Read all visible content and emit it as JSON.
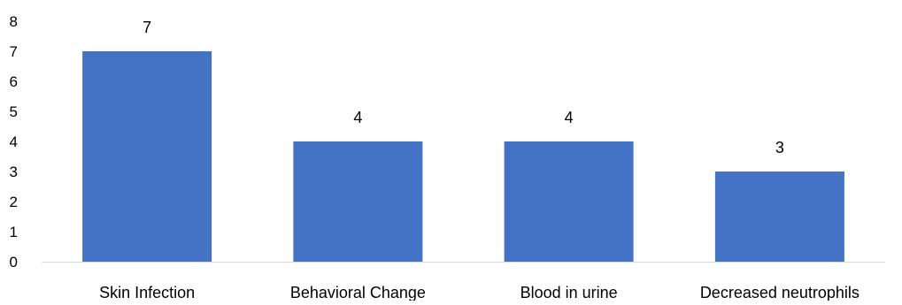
{
  "chart_data": {
    "type": "bar",
    "categories": [
      "Skin Infection",
      "Behavioral Change",
      "Blood in urine",
      "Decreased neutrophils"
    ],
    "values": [
      7,
      4,
      4,
      3
    ],
    "data_labels": [
      "7",
      "4",
      "4",
      "3"
    ],
    "title": "",
    "xlabel": "",
    "ylabel": "",
    "ylim": [
      0,
      8
    ],
    "y_ticks": [
      "0",
      "1",
      "2",
      "3",
      "4",
      "5",
      "6",
      "7",
      "8"
    ],
    "grid": false,
    "legend": "none",
    "bar_color": "#4472C4",
    "axis_color": "#D9D9D9"
  }
}
